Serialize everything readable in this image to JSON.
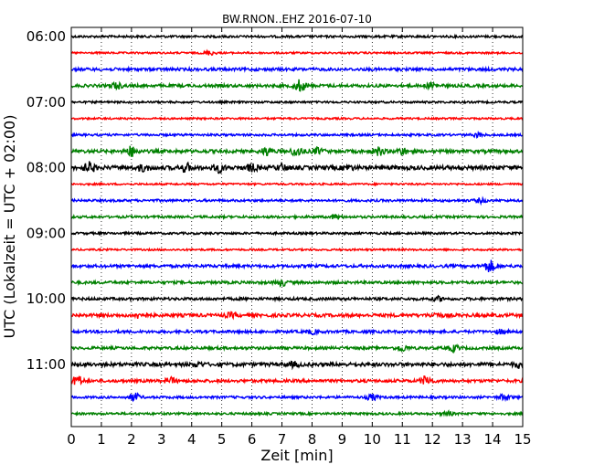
{
  "chart_data": {
    "type": "line",
    "title": "BW.RNON..EHZ 2016-07-10",
    "xlabel": "Zeit  [min]",
    "ylabel": "UTC (Lokalzeit = UTC + 02:00)",
    "xlim": [
      0,
      15
    ],
    "x_ticks": [
      "0",
      "1",
      "2",
      "3",
      "4",
      "5",
      "6",
      "7",
      "8",
      "9",
      "10",
      "11",
      "12",
      "13",
      "14",
      "15"
    ],
    "y_ticks": [
      "06:00",
      "07:00",
      "08:00",
      "09:00",
      "10:00",
      "11:00"
    ],
    "grid": "vertical dotted",
    "series": [
      {
        "start": "06:00",
        "color": "#000000",
        "amp": 1.2,
        "events": []
      },
      {
        "start": "06:15",
        "color": "#ff0000",
        "amp": 1.0,
        "events": [
          [
            4.6,
            2
          ]
        ]
      },
      {
        "start": "06:30",
        "color": "#0000ff",
        "amp": 1.6,
        "events": []
      },
      {
        "start": "06:45",
        "color": "#008000",
        "amp": 1.6,
        "events": [
          [
            1.5,
            3
          ],
          [
            7.6,
            6
          ],
          [
            12,
            3
          ]
        ]
      },
      {
        "start": "07:00",
        "color": "#000000",
        "amp": 1.1,
        "events": []
      },
      {
        "start": "07:15",
        "color": "#ff0000",
        "amp": 1.0,
        "events": []
      },
      {
        "start": "07:30",
        "color": "#0000ff",
        "amp": 1.2,
        "events": [
          [
            13.5,
            2
          ]
        ]
      },
      {
        "start": "07:45",
        "color": "#008000",
        "amp": 1.8,
        "events": [
          [
            2,
            5
          ],
          [
            6.5,
            4
          ],
          [
            7.5,
            5
          ],
          [
            8.2,
            3
          ],
          [
            10.2,
            4
          ],
          [
            11,
            3
          ]
        ]
      },
      {
        "start": "08:00",
        "color": "#000000",
        "amp": 2.2,
        "events": [
          [
            0.6,
            5
          ],
          [
            2.4,
            3
          ],
          [
            3.8,
            4
          ],
          [
            4.9,
            4
          ],
          [
            6,
            3
          ],
          [
            7,
            3
          ],
          [
            9.2,
            2
          ]
        ]
      },
      {
        "start": "08:15",
        "color": "#ff0000",
        "amp": 1.0,
        "events": []
      },
      {
        "start": "08:30",
        "color": "#0000ff",
        "amp": 1.3,
        "events": [
          [
            13.6,
            2
          ]
        ]
      },
      {
        "start": "08:45",
        "color": "#008000",
        "amp": 1.3,
        "events": [
          [
            8.8,
            2
          ]
        ]
      },
      {
        "start": "09:00",
        "color": "#000000",
        "amp": 1.2,
        "events": []
      },
      {
        "start": "09:15",
        "color": "#ff0000",
        "amp": 1.0,
        "events": []
      },
      {
        "start": "09:30",
        "color": "#0000ff",
        "amp": 1.6,
        "events": [
          [
            13.9,
            6
          ]
        ]
      },
      {
        "start": "09:45",
        "color": "#008000",
        "amp": 1.5,
        "events": [
          [
            7,
            3
          ]
        ]
      },
      {
        "start": "10:00",
        "color": "#000000",
        "amp": 1.5,
        "events": [
          [
            12.2,
            2
          ]
        ]
      },
      {
        "start": "10:15",
        "color": "#ff0000",
        "amp": 1.8,
        "events": [
          [
            2.3,
            3
          ],
          [
            5.3,
            2
          ],
          [
            12.1,
            2
          ]
        ]
      },
      {
        "start": "10:30",
        "color": "#0000ff",
        "amp": 1.5,
        "events": [
          [
            8,
            2
          ],
          [
            14.3,
            2
          ]
        ]
      },
      {
        "start": "10:45",
        "color": "#008000",
        "amp": 1.5,
        "events": [
          [
            11,
            3
          ],
          [
            12.7,
            3
          ]
        ]
      },
      {
        "start": "11:00",
        "color": "#000000",
        "amp": 2.0,
        "events": [
          [
            4.2,
            2
          ],
          [
            7.4,
            2
          ],
          [
            14.9,
            3
          ]
        ]
      },
      {
        "start": "11:15",
        "color": "#ff0000",
        "amp": 1.6,
        "events": [
          [
            0.2,
            5
          ],
          [
            3.3,
            3
          ],
          [
            11.8,
            5
          ]
        ]
      },
      {
        "start": "11:30",
        "color": "#0000ff",
        "amp": 1.3,
        "events": [
          [
            2.1,
            4
          ],
          [
            10,
            3
          ],
          [
            14.4,
            3
          ]
        ]
      },
      {
        "start": "11:45",
        "color": "#008000",
        "amp": 1.2,
        "events": [
          [
            12.5,
            2
          ]
        ]
      }
    ]
  }
}
